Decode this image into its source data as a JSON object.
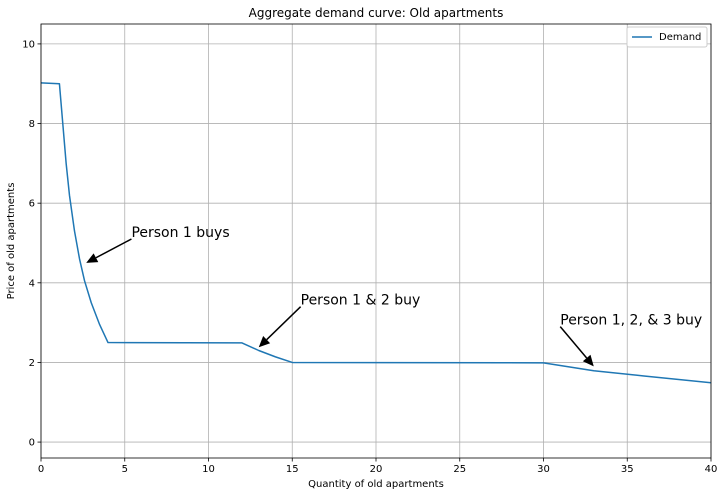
{
  "chart_data": {
    "type": "line",
    "title": "Aggregate demand curve: Old apartments",
    "xlabel": "Quantity of old apartments",
    "ylabel": "Price of old apartments",
    "xlim": [
      0,
      40
    ],
    "ylim": [
      -0.4,
      10.5
    ],
    "xticks": [
      0,
      5,
      10,
      15,
      20,
      25,
      30,
      35,
      40
    ],
    "yticks": [
      0,
      2,
      4,
      6,
      8,
      10
    ],
    "grid": true,
    "legend_position": "top-right",
    "series": [
      {
        "name": "Demand",
        "color": "#1f77b4",
        "x": [
          0,
          1.1,
          1.3,
          1.5,
          1.7,
          2.0,
          2.3,
          2.6,
          3.0,
          3.5,
          4.0,
          12.0,
          13.0,
          14.0,
          15.0,
          30.0,
          33.0,
          36.0,
          40.0
        ],
        "y": [
          9.02,
          9.0,
          8.0,
          7.0,
          6.2,
          5.3,
          4.6,
          4.05,
          3.5,
          2.95,
          2.5,
          2.49,
          2.3,
          2.14,
          2.0,
          1.99,
          1.79,
          1.66,
          1.49
        ]
      }
    ],
    "annotations": [
      {
        "text": "Person 1 buys",
        "text_x": 5.4,
        "text_y": 5.1,
        "arrow_x": 2.7,
        "arrow_y": 4.5
      },
      {
        "text": "Person 1 & 2 buy",
        "text_x": 15.5,
        "text_y": 3.4,
        "arrow_x": 13.0,
        "arrow_y": 2.38
      },
      {
        "text": "Person 1, 2, & 3 buy",
        "text_x": 31.0,
        "text_y": 2.9,
        "arrow_x": 33.0,
        "arrow_y": 1.9
      }
    ]
  }
}
